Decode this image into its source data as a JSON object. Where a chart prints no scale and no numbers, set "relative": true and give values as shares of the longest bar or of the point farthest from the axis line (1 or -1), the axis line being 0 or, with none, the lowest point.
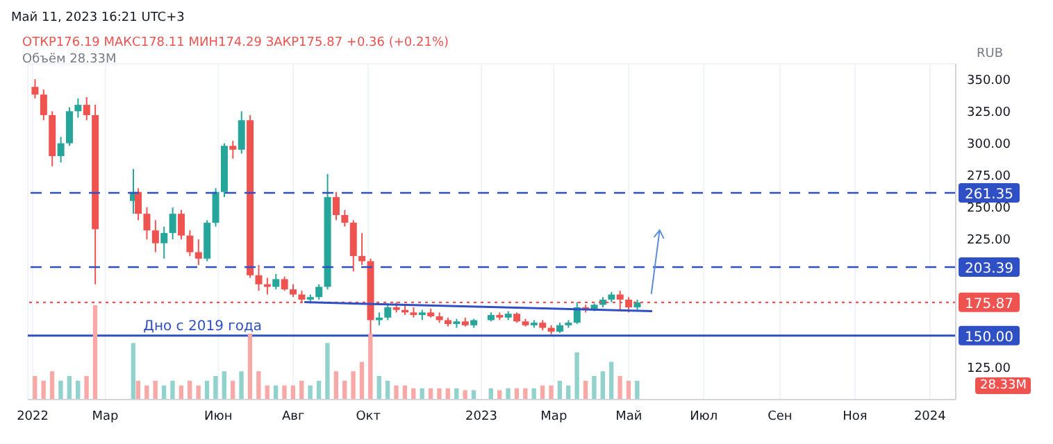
{
  "chart_data": [
    {
      "type": "candlestick",
      "subtitle": "Май 11, 2023 16:21 UTC+3",
      "title": "ОТКР176.19 МАКС178.11 МИН174.29 ЗАКР175.87 +0.36 (+0.21%)",
      "ylabel": "RUB",
      "annotations": [
        "Объём 28.33M",
        {
          "text": "Дно с 2019 года",
          "x": "2022-04-01",
          "y": 150
        }
      ],
      "x": [
        "2022-01-03",
        "2022-01-10",
        "2022-01-17",
        "2022-01-24",
        "2022-01-31",
        "2022-02-07",
        "2022-02-14",
        "2022-02-21",
        "2022-03-24",
        "2022-03-28",
        "2022-04-04",
        "2022-04-11",
        "2022-04-18",
        "2022-04-25",
        "2022-05-02",
        "2022-05-09",
        "2022-05-16",
        "2022-05-23",
        "2022-05-30",
        "2022-06-06",
        "2022-06-13",
        "2022-06-20",
        "2022-06-27",
        "2022-07-04",
        "2022-07-11",
        "2022-07-18",
        "2022-07-25",
        "2022-08-01",
        "2022-08-08",
        "2022-08-15",
        "2022-08-22",
        "2022-08-29",
        "2022-09-05",
        "2022-09-12",
        "2022-09-19",
        "2022-09-26",
        "2022-10-03",
        "2022-10-10",
        "2022-10-17",
        "2022-10-24",
        "2022-10-31",
        "2022-11-07",
        "2022-11-14",
        "2022-11-21",
        "2022-11-28",
        "2022-12-05",
        "2022-12-12",
        "2022-12-19",
        "2022-12-26",
        "2023-01-09",
        "2023-01-16",
        "2023-01-23",
        "2023-01-30",
        "2023-02-06",
        "2023-02-13",
        "2023-02-20",
        "2023-02-27",
        "2023-03-06",
        "2023-03-13",
        "2023-03-20",
        "2023-03-27",
        "2023-04-03",
        "2023-04-10",
        "2023-04-17",
        "2023-04-24",
        "2023-05-01",
        "2023-05-08"
      ],
      "ohlc": [
        [
          344,
          350,
          335,
          338
        ],
        [
          338,
          342,
          318,
          322
        ],
        [
          322,
          325,
          282,
          290
        ],
        [
          290,
          305,
          285,
          300
        ],
        [
          300,
          328,
          298,
          325
        ],
        [
          325,
          335,
          320,
          330
        ],
        [
          330,
          336,
          318,
          322
        ],
        [
          322,
          330,
          190,
          233
        ],
        [
          255,
          280,
          245,
          262
        ],
        [
          262,
          265,
          240,
          245
        ],
        [
          245,
          250,
          225,
          232
        ],
        [
          232,
          240,
          215,
          222
        ],
        [
          222,
          235,
          210,
          230
        ],
        [
          230,
          250,
          225,
          245
        ],
        [
          245,
          248,
          225,
          228
        ],
        [
          228,
          232,
          212,
          215
        ],
        [
          215,
          225,
          205,
          210
        ],
        [
          210,
          240,
          208,
          238
        ],
        [
          238,
          265,
          235,
          262
        ],
        [
          262,
          300,
          258,
          298
        ],
        [
          298,
          302,
          288,
          295
        ],
        [
          295,
          325,
          292,
          318
        ],
        [
          318,
          322,
          195,
          197
        ],
        [
          197,
          205,
          185,
          190
        ],
        [
          190,
          195,
          182,
          188
        ],
        [
          188,
          198,
          186,
          194
        ],
        [
          194,
          196,
          185,
          186
        ],
        [
          186,
          190,
          180,
          182
        ],
        [
          182,
          185,
          176,
          178
        ],
        [
          178,
          182,
          175,
          180
        ],
        [
          180,
          190,
          178,
          188
        ],
        [
          188,
          276,
          186,
          258
        ],
        [
          258,
          262,
          240,
          244
        ],
        [
          244,
          248,
          235,
          238
        ],
        [
          238,
          240,
          200,
          212
        ],
        [
          212,
          230,
          205,
          208
        ],
        [
          208,
          210,
          138,
          162
        ],
        [
          162,
          168,
          158,
          164
        ],
        [
          164,
          175,
          162,
          172
        ],
        [
          172,
          176,
          168,
          170
        ],
        [
          170,
          174,
          166,
          168
        ],
        [
          168,
          172,
          164,
          166
        ],
        [
          166,
          170,
          162,
          168
        ],
        [
          168,
          171,
          164,
          165
        ],
        [
          165,
          168,
          160,
          162
        ],
        [
          162,
          164,
          157,
          159
        ],
        [
          159,
          163,
          156,
          161
        ],
        [
          161,
          164,
          157,
          158
        ],
        [
          158,
          163,
          156,
          162
        ],
        [
          162,
          168,
          161,
          166
        ],
        [
          166,
          168,
          162,
          164
        ],
        [
          164,
          169,
          162,
          167
        ],
        [
          167,
          168,
          160,
          161
        ],
        [
          161,
          163,
          157,
          158
        ],
        [
          158,
          162,
          156,
          160
        ],
        [
          160,
          162,
          154,
          156
        ],
        [
          156,
          158,
          151,
          153
        ],
        [
          153,
          160,
          152,
          158
        ],
        [
          158,
          162,
          156,
          160
        ],
        [
          160,
          176,
          159,
          172
        ],
        [
          172,
          174,
          168,
          170
        ],
        [
          170,
          175,
          169,
          174
        ],
        [
          174,
          180,
          172,
          178
        ],
        [
          178,
          184,
          176,
          182
        ],
        [
          182,
          185,
          170,
          178
        ],
        [
          178,
          180,
          168,
          172
        ],
        [
          172,
          178,
          170,
          175.87
        ]
      ],
      "colors": [
        "#ef5350",
        "#ef5350",
        "#ef5350",
        "#26a69a",
        "#26a69a",
        "#26a69a",
        "#ef5350",
        "#ef5350",
        "#26a69a",
        "#ef5350",
        "#ef5350",
        "#ef5350",
        "#26a69a",
        "#26a69a",
        "#ef5350",
        "#ef5350",
        "#ef5350",
        "#26a69a",
        "#26a69a",
        "#26a69a",
        "#ef5350",
        "#26a69a",
        "#ef5350",
        "#ef5350",
        "#ef5350",
        "#26a69a",
        "#ef5350",
        "#ef5350",
        "#ef5350",
        "#26a69a",
        "#26a69a",
        "#26a69a",
        "#ef5350",
        "#ef5350",
        "#ef5350",
        "#ef5350",
        "#ef5350",
        "#26a69a",
        "#26a69a",
        "#ef5350",
        "#ef5350",
        "#ef5350",
        "#26a69a",
        "#ef5350",
        "#ef5350",
        "#ef5350",
        "#26a69a",
        "#ef5350",
        "#26a69a",
        "#26a69a",
        "#ef5350",
        "#26a69a",
        "#ef5350",
        "#ef5350",
        "#26a69a",
        "#ef5350",
        "#ef5350",
        "#26a69a",
        "#26a69a",
        "#26a69a",
        "#ef5350",
        "#26a69a",
        "#26a69a",
        "#26a69a",
        "#ef5350",
        "#ef5350",
        "#26a69a"
      ],
      "series": [
        {
          "type": "line",
          "color": "#2f4fc4",
          "x": [
            "2022-08-10",
            "2023-05-20"
          ],
          "values": [
            176,
            169
          ]
        }
      ],
      "ylim": [
        100,
        362
      ],
      "yticks": [
        {
          "value": 125,
          "label": "125.00"
        },
        {
          "value": 225,
          "label": "225.00"
        },
        {
          "value": 250,
          "label": "250.00"
        },
        {
          "value": 275,
          "label": "275.00"
        },
        {
          "value": 300,
          "label": "300.00"
        },
        {
          "value": 325,
          "label": "325.00"
        },
        {
          "value": 350,
          "label": "350.00"
        }
      ],
      "xlim": [
        "2021-12-28",
        "2024-01-22"
      ],
      "xticks": [
        {
          "value": "2022-01-01",
          "label": "2022"
        },
        {
          "value": "2022-03-01",
          "label": "Мар"
        },
        {
          "value": "2022-06-01",
          "label": "Июн"
        },
        {
          "value": "2022-08-01",
          "label": "Авг"
        },
        {
          "value": "2022-10-01",
          "label": "Окт"
        },
        {
          "value": "2023-01-01",
          "label": "2023"
        },
        {
          "value": "2023-03-01",
          "label": "Мар"
        },
        {
          "value": "2023-05-01",
          "label": "Май"
        },
        {
          "value": "2023-07-01",
          "label": "Июл"
        },
        {
          "value": "2023-09-01",
          "label": "Сен"
        },
        {
          "value": "2023-11-01",
          "label": "Ноя"
        },
        {
          "value": "2024-01-01",
          "label": "2024"
        }
      ],
      "ref_lines": [
        {
          "axis": "y",
          "value": 261.35,
          "label": "261.35",
          "color": "#2f4fc4",
          "line_style": "dashed"
        },
        {
          "axis": "y",
          "value": 203.39,
          "label": "203.39",
          "color": "#2f4fc4",
          "line_style": "dashed"
        },
        {
          "axis": "y",
          "value": 175.87,
          "label": "175.87",
          "color": "#ef5350",
          "line_style": "dotted"
        },
        {
          "axis": "y",
          "value": 150,
          "label": "150.00",
          "color": "#2f4fc4",
          "line_style": "solid"
        }
      ],
      "grid": true
    },
    {
      "type": "bar",
      "relative": true,
      "tick_labels": false,
      "annotations": [
        "28.33M"
      ],
      "xlim": [
        "2021-12-28",
        "2024-01-22"
      ],
      "x": [
        "2022-01-03",
        "2022-01-10",
        "2022-01-17",
        "2022-01-24",
        "2022-01-31",
        "2022-02-07",
        "2022-02-14",
        "2022-02-21",
        "2022-03-24",
        "2022-03-28",
        "2022-04-04",
        "2022-04-11",
        "2022-04-18",
        "2022-04-25",
        "2022-05-02",
        "2022-05-09",
        "2022-05-16",
        "2022-05-23",
        "2022-05-30",
        "2022-06-06",
        "2022-06-13",
        "2022-06-20",
        "2022-06-27",
        "2022-07-04",
        "2022-07-11",
        "2022-07-18",
        "2022-07-25",
        "2022-08-01",
        "2022-08-08",
        "2022-08-15",
        "2022-08-22",
        "2022-08-29",
        "2022-09-05",
        "2022-09-12",
        "2022-09-19",
        "2022-09-26",
        "2022-10-03",
        "2022-10-10",
        "2022-10-17",
        "2022-10-24",
        "2022-10-31",
        "2022-11-07",
        "2022-11-14",
        "2022-11-21",
        "2022-11-28",
        "2022-12-05",
        "2022-12-12",
        "2022-12-19",
        "2022-12-26",
        "2023-01-09",
        "2023-01-16",
        "2023-01-23",
        "2023-01-30",
        "2023-02-06",
        "2023-02-13",
        "2023-02-20",
        "2023-02-27",
        "2023-03-06",
        "2023-03-13",
        "2023-03-20",
        "2023-03-27",
        "2023-04-03",
        "2023-04-10",
        "2023-04-17",
        "2023-04-24",
        "2023-05-01",
        "2023-05-08"
      ],
      "values": [
        0.25,
        0.2,
        0.3,
        0.2,
        0.25,
        0.2,
        0.25,
        1.0,
        0.6,
        0.2,
        0.15,
        0.2,
        0.15,
        0.2,
        0.15,
        0.2,
        0.15,
        0.2,
        0.25,
        0.3,
        0.2,
        0.3,
        0.7,
        0.3,
        0.15,
        0.15,
        0.15,
        0.15,
        0.2,
        0.15,
        0.2,
        0.6,
        0.3,
        0.2,
        0.3,
        0.4,
        0.7,
        0.25,
        0.2,
        0.15,
        0.15,
        0.12,
        0.12,
        0.12,
        0.12,
        0.12,
        0.12,
        0.1,
        0.1,
        0.12,
        0.1,
        0.12,
        0.12,
        0.12,
        0.12,
        0.15,
        0.15,
        0.2,
        0.15,
        0.5,
        0.2,
        0.25,
        0.3,
        0.4,
        0.25,
        0.2,
        0.2
      ],
      "colors": [
        "#f7a9a7",
        "#f7a9a7",
        "#f7a9a7",
        "#92d2cc",
        "#92d2cc",
        "#92d2cc",
        "#f7a9a7",
        "#f7a9a7",
        "#92d2cc",
        "#f7a9a7",
        "#f7a9a7",
        "#f7a9a7",
        "#92d2cc",
        "#92d2cc",
        "#f7a9a7",
        "#f7a9a7",
        "#f7a9a7",
        "#92d2cc",
        "#92d2cc",
        "#92d2cc",
        "#f7a9a7",
        "#92d2cc",
        "#f7a9a7",
        "#f7a9a7",
        "#f7a9a7",
        "#92d2cc",
        "#f7a9a7",
        "#f7a9a7",
        "#f7a9a7",
        "#92d2cc",
        "#92d2cc",
        "#92d2cc",
        "#f7a9a7",
        "#f7a9a7",
        "#f7a9a7",
        "#f7a9a7",
        "#f7a9a7",
        "#92d2cc",
        "#92d2cc",
        "#f7a9a7",
        "#f7a9a7",
        "#f7a9a7",
        "#92d2cc",
        "#f7a9a7",
        "#f7a9a7",
        "#f7a9a7",
        "#92d2cc",
        "#f7a9a7",
        "#92d2cc",
        "#92d2cc",
        "#f7a9a7",
        "#92d2cc",
        "#f7a9a7",
        "#f7a9a7",
        "#92d2cc",
        "#f7a9a7",
        "#f7a9a7",
        "#92d2cc",
        "#92d2cc",
        "#92d2cc",
        "#f7a9a7",
        "#92d2cc",
        "#92d2cc",
        "#92d2cc",
        "#f7a9a7",
        "#f7a9a7",
        "#92d2cc"
      ]
    }
  ]
}
